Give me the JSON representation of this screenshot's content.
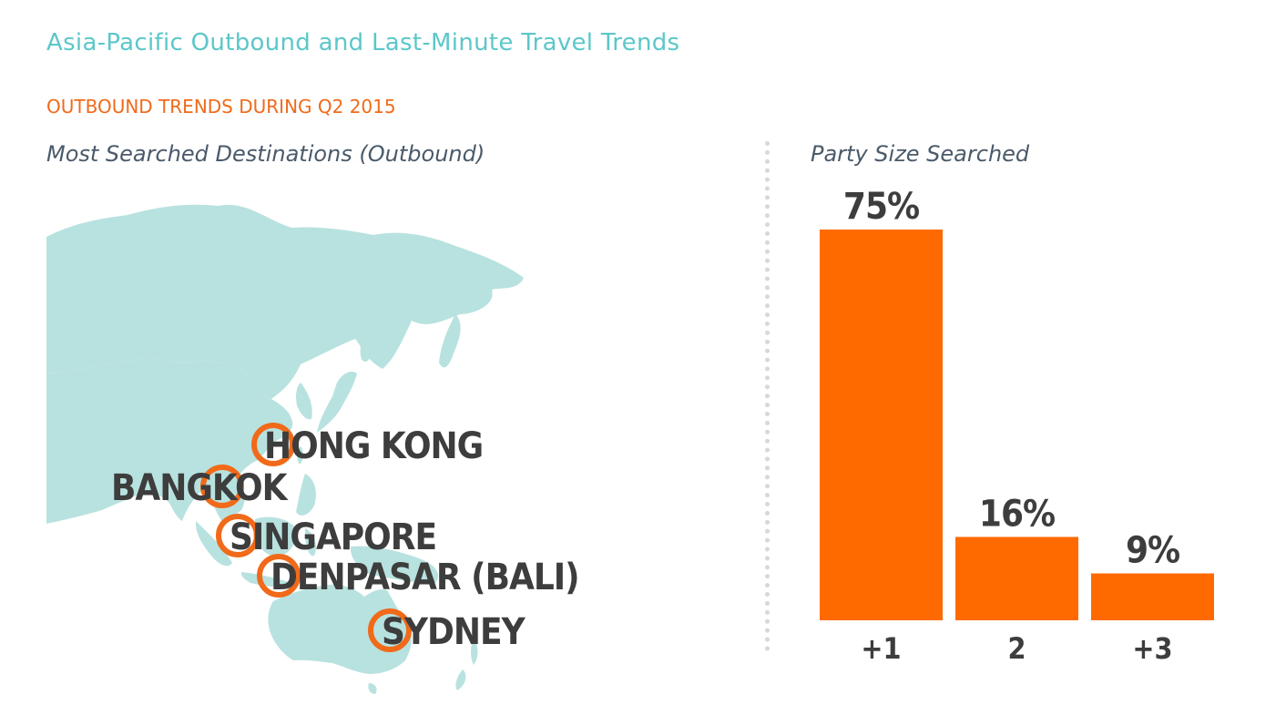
{
  "page": {
    "title": "Asia-Pacific Outbound and Last-Minute Travel Trends",
    "section": "OUTBOUND TRENDS DURING Q2 2015"
  },
  "map": {
    "title": "Most Searched Destinations (Outbound)",
    "land_color": "#b8e2df",
    "marker_color": "#f06a1a",
    "cities": [
      {
        "name": "HONG KONG"
      },
      {
        "name": "BANGKOK"
      },
      {
        "name": "SINGAPORE"
      },
      {
        "name": "DENPASAR (BALI)"
      },
      {
        "name": "SYDNEY"
      }
    ]
  },
  "chart_data": {
    "type": "bar",
    "title": "Party Size Searched",
    "categories": [
      "+1",
      "2",
      "+3"
    ],
    "values": [
      75,
      16,
      9
    ],
    "value_labels": [
      "75%",
      "16%",
      "9%"
    ],
    "ylim": [
      0,
      75
    ],
    "bar_color": "#ff6a00",
    "grid": false,
    "xlabel": "",
    "ylabel": ""
  }
}
